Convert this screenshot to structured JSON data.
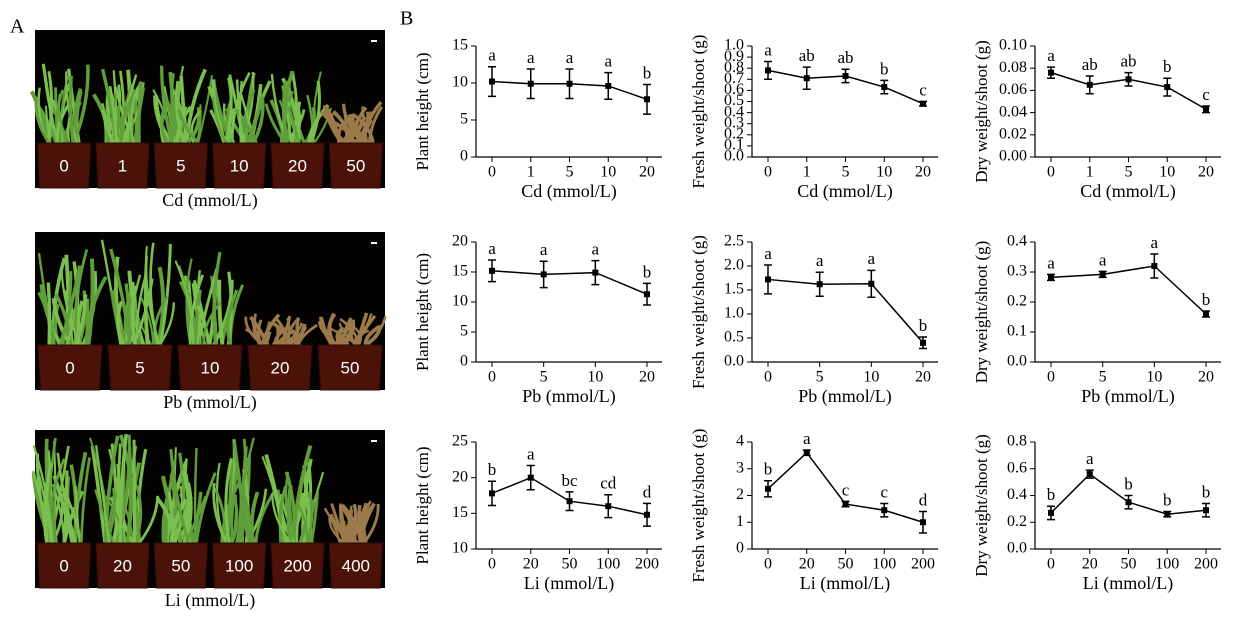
{
  "panel_a": {
    "label": "A",
    "photos": [
      {
        "pots": [
          "0",
          "1",
          "5",
          "10",
          "20",
          "50"
        ],
        "caption": "Cd (mmol/L)"
      },
      {
        "pots": [
          "0",
          "5",
          "10",
          "20",
          "50"
        ],
        "caption": "Pb (mmol/L)"
      },
      {
        "pots": [
          "0",
          "20",
          "50",
          "100",
          "200",
          "400"
        ],
        "caption": "Li (mmol/L)"
      }
    ]
  },
  "panel_b": {
    "label": "B"
  },
  "chart_data": [
    {
      "type": "line",
      "ylabel": "Plant height (cm)",
      "xlabel": "Cd (mmol/L)",
      "categories": [
        "0",
        "1",
        "5",
        "10",
        "20"
      ],
      "values": [
        10.2,
        9.9,
        9.9,
        9.6,
        7.8
      ],
      "errors": [
        2,
        2,
        2,
        1.8,
        2
      ],
      "letters": [
        "a",
        "a",
        "a",
        "a",
        "b"
      ],
      "ylim": [
        0,
        15
      ],
      "yticks": [
        0,
        5,
        10,
        15
      ],
      "color": "#000000"
    },
    {
      "type": "line",
      "ylabel": "Fresh weight/shoot (g)",
      "xlabel": "Cd (mmol/L)",
      "categories": [
        "0",
        "1",
        "5",
        "10",
        "20"
      ],
      "values": [
        0.78,
        0.71,
        0.73,
        0.63,
        0.48
      ],
      "errors": [
        0.08,
        0.1,
        0.06,
        0.06,
        0.02
      ],
      "letters": [
        "a",
        "ab",
        "ab",
        "b",
        "c"
      ],
      "ylim": [
        0,
        1.0
      ],
      "yticks": [
        {
          "value": 0,
          "label": "0.0"
        },
        0.1,
        0.2,
        0.3,
        0.4,
        0.5,
        0.6,
        0.7,
        0.8,
        0.9,
        {
          "value": 1,
          "label": "1.0"
        }
      ],
      "color": "#000000"
    },
    {
      "type": "line",
      "ylabel": "Dry weight/shoot (g)",
      "xlabel": "Cd (mmol/L)",
      "categories": [
        "0",
        "1",
        "5",
        "10",
        "20"
      ],
      "values": [
        0.076,
        0.065,
        0.07,
        0.063,
        0.043
      ],
      "errors": [
        0.005,
        0.008,
        0.006,
        0.008,
        0.003
      ],
      "letters": [
        "a",
        "ab",
        "ab",
        "b",
        "c"
      ],
      "ylim": [
        0,
        0.1
      ],
      "yticks": [
        {
          "value": 0,
          "label": "0.00"
        },
        0.02,
        0.04,
        0.06,
        0.08,
        {
          "value": 0.1,
          "label": "0.10"
        }
      ],
      "color": "#000000"
    },
    {
      "type": "line",
      "ylabel": "Plant height (cm)",
      "xlabel": "Pb (mmol/L)",
      "categories": [
        "0",
        "5",
        "10",
        "20"
      ],
      "values": [
        15.2,
        14.6,
        14.9,
        11.3
      ],
      "errors": [
        1.8,
        2.2,
        2,
        1.8
      ],
      "letters": [
        "a",
        "a",
        "a",
        "b"
      ],
      "ylim": [
        0,
        20
      ],
      "yticks": [
        0,
        5,
        10,
        15,
        20
      ],
      "color": "#000000"
    },
    {
      "type": "line",
      "ylabel": "Fresh weight/shoot (g)",
      "xlabel": "Pb (mmol/L)",
      "categories": [
        "0",
        "5",
        "10",
        "20"
      ],
      "values": [
        1.72,
        1.62,
        1.63,
        0.4
      ],
      "errors": [
        0.3,
        0.25,
        0.28,
        0.12
      ],
      "letters": [
        "a",
        "a",
        "a",
        "b"
      ],
      "ylim": [
        0,
        2.5
      ],
      "yticks": [
        {
          "value": 0,
          "label": "0.0"
        },
        0.5,
        {
          "value": 1,
          "label": "1.0"
        },
        1.5,
        {
          "value": 2,
          "label": "2.0"
        },
        2.5
      ],
      "color": "#000000"
    },
    {
      "type": "line",
      "ylabel": "Dry weight/shoot (g)",
      "xlabel": "Pb (mmol/L)",
      "categories": [
        "0",
        "5",
        "10",
        "20"
      ],
      "values": [
        0.282,
        0.292,
        0.32,
        0.16
      ],
      "errors": [
        0.01,
        0.01,
        0.04,
        0.01
      ],
      "letters": [
        "a",
        "a",
        "a",
        "b"
      ],
      "ylim": [
        0,
        0.4
      ],
      "yticks": [
        {
          "value": 0,
          "label": "0.0"
        },
        0.1,
        0.2,
        0.3,
        0.4
      ],
      "color": "#000000"
    },
    {
      "type": "line",
      "ylabel": "Plant height (cm)",
      "xlabel": "Li (mmol/L)",
      "categories": [
        "0",
        "20",
        "50",
        "100",
        "200"
      ],
      "values": [
        17.8,
        20,
        16.7,
        16,
        14.8
      ],
      "errors": [
        1.7,
        1.7,
        1.3,
        1.6,
        1.6
      ],
      "letters": [
        "b",
        "a",
        "bc",
        "cd",
        "d"
      ],
      "ylim": [
        10,
        25
      ],
      "yticks": [
        10,
        15,
        20,
        25
      ],
      "color": "#000000"
    },
    {
      "type": "line",
      "ylabel": "Fresh weight/shoot (g)",
      "xlabel": "Li (mmol/L)",
      "categories": [
        "0",
        "20",
        "50",
        "100",
        "200"
      ],
      "values": [
        2.25,
        3.6,
        1.68,
        1.45,
        1.0
      ],
      "errors": [
        0.3,
        0.1,
        0.1,
        0.25,
        0.4
      ],
      "letters": [
        "b",
        "a",
        "c",
        "c",
        "d"
      ],
      "ylim": [
        0,
        4
      ],
      "yticks": [
        0,
        1,
        2,
        3,
        4
      ],
      "color": "#000000"
    },
    {
      "type": "line",
      "ylabel": "Dry weight/shoot (g)",
      "xlabel": "Li (mmol/L)",
      "categories": [
        "0",
        "20",
        "50",
        "100",
        "200"
      ],
      "values": [
        0.27,
        0.56,
        0.35,
        0.26,
        0.29
      ],
      "errors": [
        0.05,
        0.03,
        0.05,
        0.02,
        0.05
      ],
      "letters": [
        "b",
        "a",
        "b",
        "b",
        "b"
      ],
      "ylim": [
        0,
        0.8
      ],
      "yticks": [
        {
          "value": 0,
          "label": "0.0"
        },
        0.2,
        0.4,
        0.6,
        0.8
      ],
      "color": "#000000"
    }
  ]
}
